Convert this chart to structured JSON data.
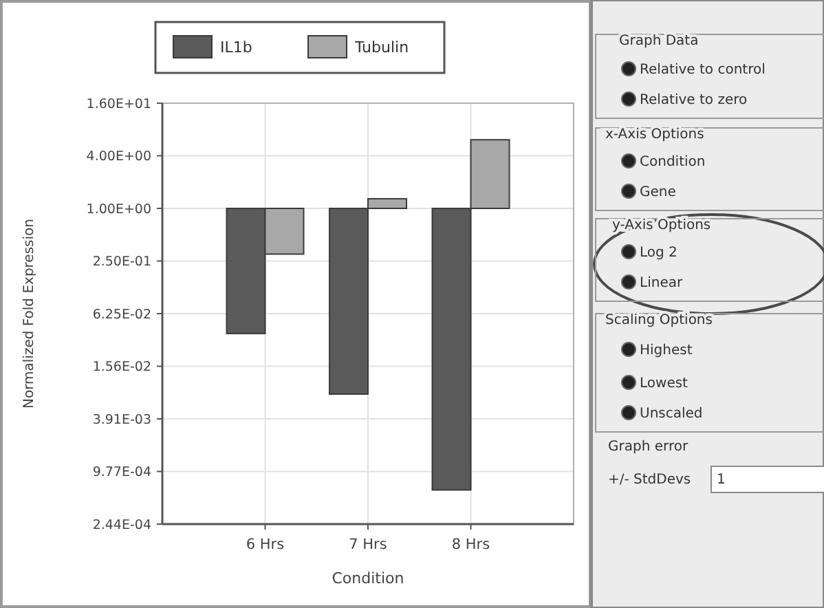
{
  "chart_data": [
    {
      "type": "bar",
      "xlabel": "Condition",
      "ylabel": "Normalized Fold Expression",
      "categories": [
        "6 Hrs",
        "7 Hrs",
        "8 Hrs"
      ],
      "series": [
        {
          "name": "IL1b",
          "color": "#5a5a5a",
          "base": [
            1,
            1,
            1
          ],
          "values": [
            -0.963,
            -0.9925,
            -0.9994
          ]
        },
        {
          "name": "Tubulin",
          "color": "#a8a8a8",
          "base": [
            1,
            1,
            1
          ],
          "values": [
            -0.7,
            0.29,
            5.1
          ]
        }
      ],
      "log": "y",
      "ylim": [
        0.000244140625,
        16
      ],
      "yticks": [
        {
          "value": 0.000244140625,
          "label": "2.44E-04"
        },
        {
          "value": 0.0009765625,
          "label": "9.77E-04"
        },
        {
          "value": 0.00390625,
          "label": "3.91E-03"
        },
        {
          "value": 0.015625,
          "label": "1.56E-02"
        },
        {
          "value": 0.0625,
          "label": "6.25E-02"
        },
        {
          "value": 0.25,
          "label": "2.50E-01"
        },
        {
          "value": 1,
          "label": "1.00E+00"
        },
        {
          "value": 4,
          "label": "4.00E+00"
        },
        {
          "value": 16,
          "label": "1.60E+01"
        }
      ],
      "grid": true,
      "legend": "top"
    },
    {
      "type": "other",
      "annotations": [
        "Graph Data",
        "Relative to control",
        "Relative to zero",
        "x-Axis Options",
        "Condition",
        "Gene",
        "y-Axis Options",
        "Log 2",
        "Linear",
        "Scaling Options",
        "Highest",
        "Lowest",
        "Unscaled",
        "Graph error",
        "+/- StdDevs",
        "1"
      ]
    }
  ]
}
